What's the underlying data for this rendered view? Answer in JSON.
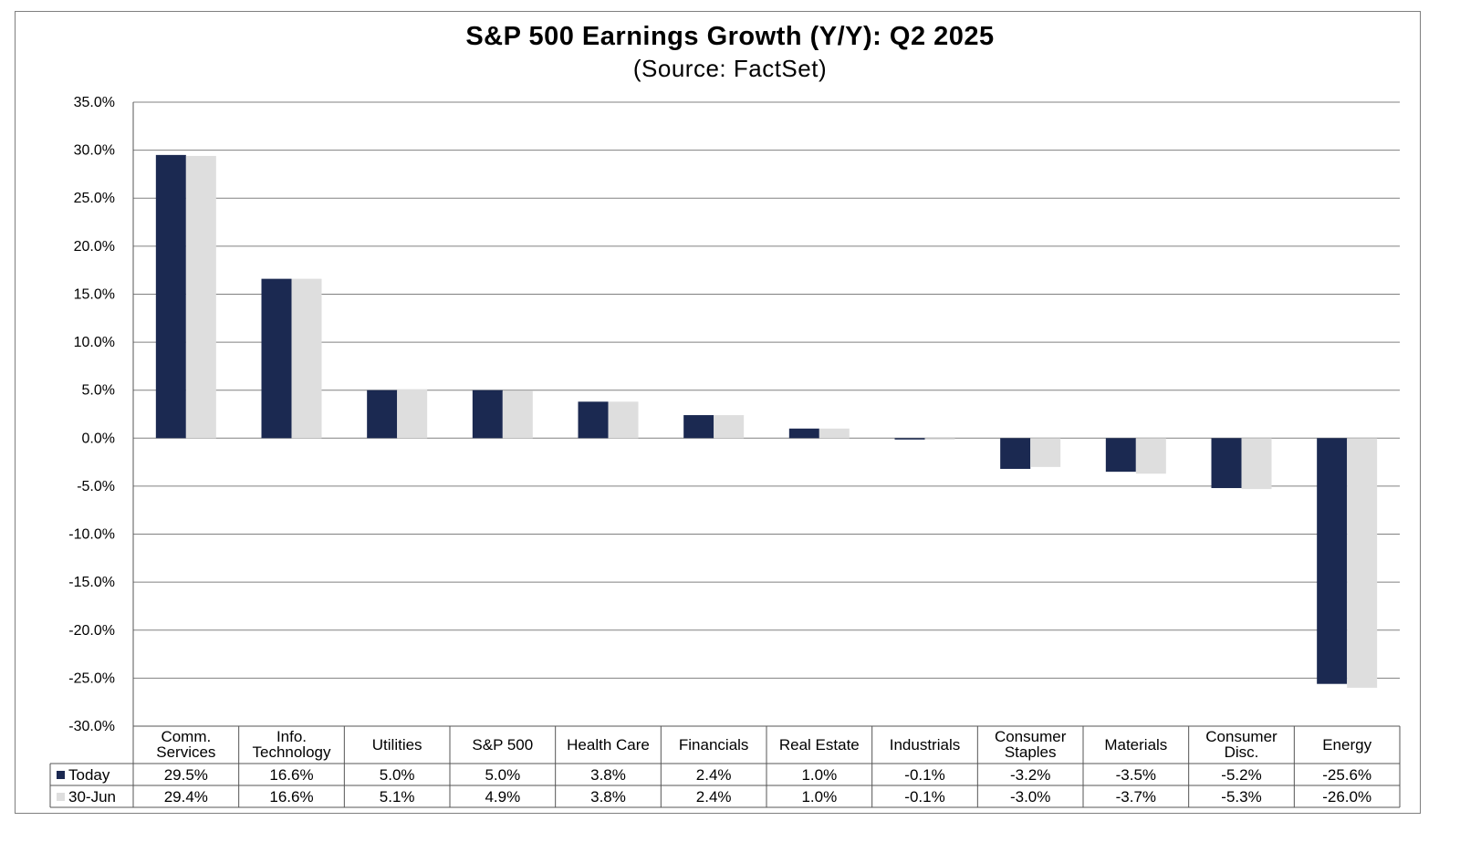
{
  "title": "S&P 500 Earnings Growth (Y/Y): Q2 2025",
  "subtitle": "(Source: FactSet)",
  "colors": {
    "today": "#1b2951",
    "jun30": "#dedede",
    "grid": "#808080",
    "border": "#7f7f7f"
  },
  "chart_data": {
    "type": "bar",
    "title": "S&P 500 Earnings Growth (Y/Y): Q2 2025",
    "subtitle": "(Source: FactSet)",
    "xlabel": "",
    "ylabel": "",
    "ylim": [
      -30,
      35
    ],
    "y_step": 5,
    "y_tick_labels": [
      "35.0%",
      "30.0%",
      "25.0%",
      "20.0%",
      "15.0%",
      "10.0%",
      "5.0%",
      "0.0%",
      "-5.0%",
      "-10.0%",
      "-15.0%",
      "-20.0%",
      "-25.0%",
      "-30.0%"
    ],
    "grid": true,
    "legend": "data-table",
    "categories": [
      [
        "Comm.",
        "Services"
      ],
      [
        "Info.",
        "Technology"
      ],
      [
        "Utilities"
      ],
      [
        "S&P 500"
      ],
      [
        "Health Care"
      ],
      [
        "Financials"
      ],
      [
        "Real Estate"
      ],
      [
        "Industrials"
      ],
      [
        "Consumer",
        "Staples"
      ],
      [
        "Materials"
      ],
      [
        "Consumer",
        "Disc."
      ],
      [
        "Energy"
      ]
    ],
    "series": [
      {
        "name": "Today",
        "color": "#1b2951",
        "values": [
          29.5,
          16.6,
          5.0,
          5.0,
          3.8,
          2.4,
          1.0,
          -0.1,
          -3.2,
          -3.5,
          -5.2,
          -25.6
        ],
        "labels": [
          "29.5%",
          "16.6%",
          "5.0%",
          "5.0%",
          "3.8%",
          "2.4%",
          "1.0%",
          "-0.1%",
          "-3.2%",
          "-3.5%",
          "-5.2%",
          "-25.6%"
        ]
      },
      {
        "name": "30-Jun",
        "color": "#dedede",
        "values": [
          29.4,
          16.6,
          5.1,
          4.9,
          3.8,
          2.4,
          1.0,
          -0.1,
          -3.0,
          -3.7,
          -5.3,
          -26.0
        ],
        "labels": [
          "29.4%",
          "16.6%",
          "5.1%",
          "4.9%",
          "3.8%",
          "2.4%",
          "1.0%",
          "-0.1%",
          "-3.0%",
          "-3.7%",
          "-5.3%",
          "-26.0%"
        ]
      }
    ]
  }
}
